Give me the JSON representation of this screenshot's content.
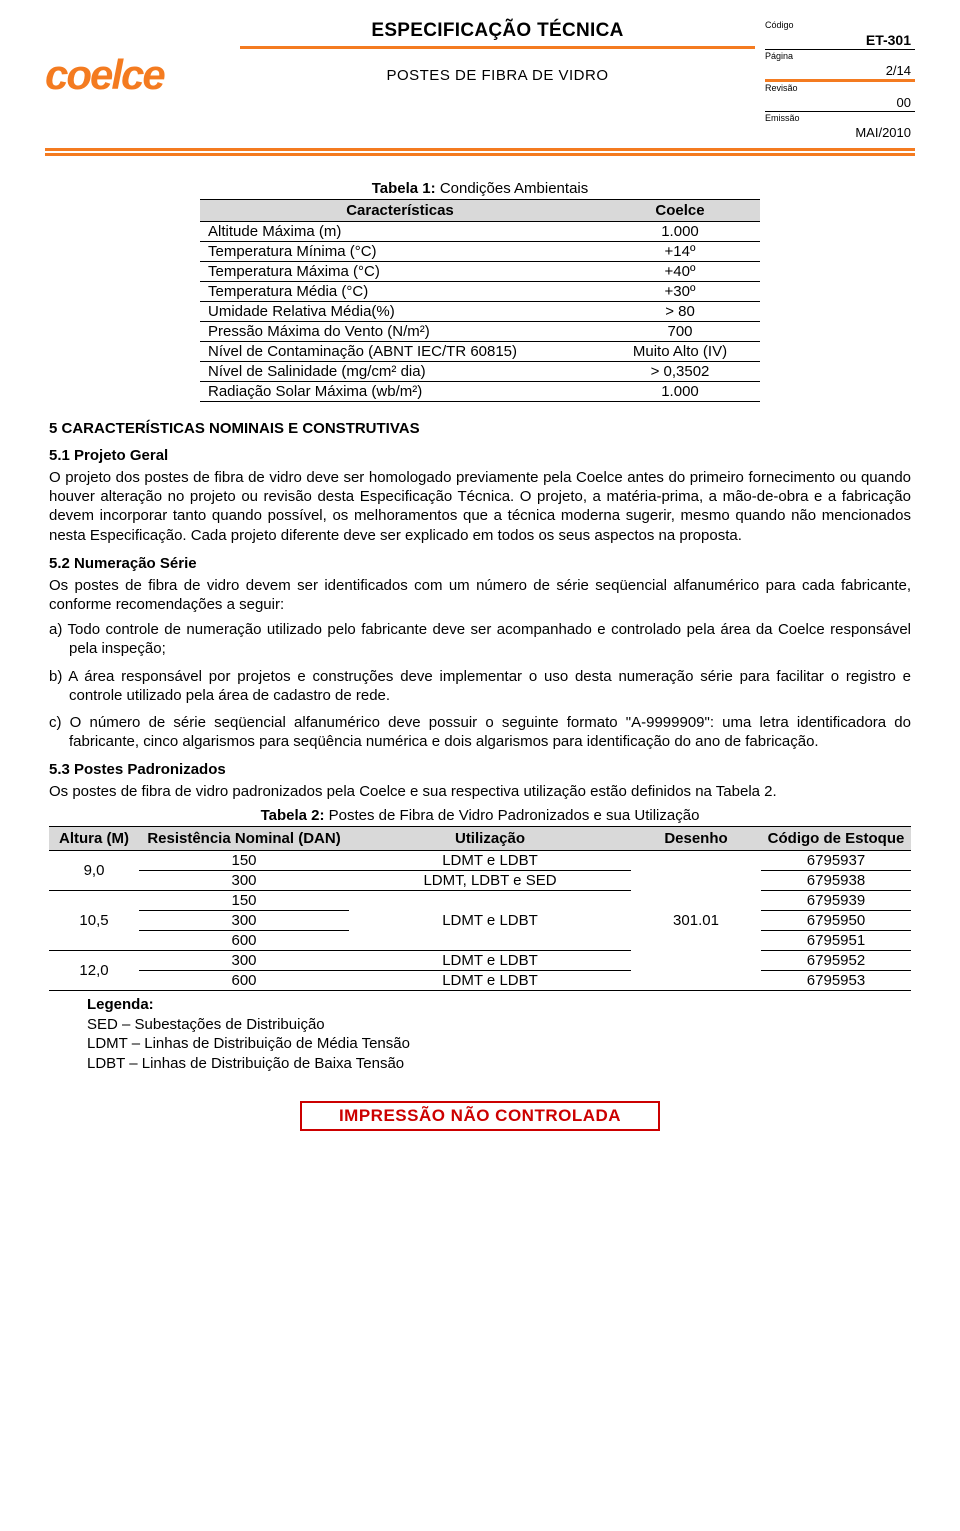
{
  "header": {
    "logo_text": "coelce",
    "title": "ESPECIFICAÇÃO TÉCNICA",
    "subtitle": "POSTES DE FIBRA DE VIDRO",
    "meta": {
      "codigo_label": "Código",
      "codigo": "ET-301",
      "pagina_label": "Página",
      "pagina": "2/14",
      "revisao_label": "Revisão",
      "revisao": "00",
      "emissao_label": "Emissão",
      "emissao": "MAI/2010"
    }
  },
  "table1": {
    "title_bold": "Tabela 1:",
    "title_rest": " Condições Ambientais",
    "headers": [
      "Características",
      "Coelce"
    ],
    "rows": [
      [
        "Altitude Máxima (m)",
        "1.000"
      ],
      [
        "Temperatura Mínima (°C)",
        "+14º"
      ],
      [
        "Temperatura Máxima (°C)",
        "+40º"
      ],
      [
        "Temperatura Média (°C)",
        "+30º"
      ],
      [
        "Umidade Relativa Média(%)",
        "> 80"
      ],
      [
        "Pressão Máxima do Vento (N/m²)",
        "700"
      ],
      [
        "Nível de Contaminação (ABNT IEC/TR 60815)",
        "Muito Alto (IV)"
      ],
      [
        "Nível de Salinidade (mg/cm² dia)",
        "> 0,3502"
      ],
      [
        "Radiação Solar Máxima (wb/m²)",
        "1.000"
      ]
    ]
  },
  "sec5": {
    "heading": "5   CARACTERÍSTICAS NOMINAIS E CONSTRUTIVAS",
    "s51_title": "5.1 Projeto Geral",
    "s51_body": "O projeto dos postes de fibra de vidro deve ser homologado previamente pela Coelce antes do primeiro fornecimento ou quando houver alteração no projeto ou revisão desta Especificação Técnica. O projeto, a matéria-prima, a mão-de-obra e a fabricação devem incorporar tanto quando possível, os melhoramentos que a técnica moderna sugerir, mesmo quando não mencionados nesta Especificação. Cada projeto diferente deve ser explicado em todos os seus aspectos na proposta.",
    "s52_title": "5.2 Numeração Série",
    "s52_intro": "Os postes de fibra de vidro devem ser identificados com um número de série seqüencial alfanumérico para cada fabricante, conforme recomendações a seguir:",
    "s52_a": "a) Todo controle de numeração utilizado pelo fabricante deve ser acompanhado e controlado pela área da Coelce responsável pela inspeção;",
    "s52_b": "b) A área responsável por projetos e construções deve implementar o uso desta numeração série para facilitar o registro e controle utilizado pela área de cadastro de rede.",
    "s52_c": "c) O número de série seqüencial alfanumérico deve possuir o seguinte formato \"A-9999909\": uma letra identificadora do fabricante, cinco algarismos para seqüência numérica e dois algarismos para identificação do ano de fabricação.",
    "s53_title": "5.3 Postes Padronizados",
    "s53_intro": "Os postes de fibra de vidro padronizados pela Coelce e sua respectiva utilização estão definidos na Tabela 2."
  },
  "table2": {
    "title_bold": "Tabela 2:",
    "title_rest": " Postes de Fibra de Vidro Padronizados e sua Utilização",
    "headers": [
      "Altura (M)",
      "Resistência Nominal (DAN)",
      "Utilização",
      "Desenho",
      "Código de Estoque"
    ],
    "desenho": "301.01",
    "rows": [
      {
        "altura": "9,0",
        "res": "150",
        "util": "LDMT e LDBT",
        "cod": "6795937"
      },
      {
        "altura": "",
        "res": "300",
        "util": "LDMT, LDBT e SED",
        "cod": "6795938"
      },
      {
        "altura": "10,5",
        "res": "150",
        "util": "LDMT e LDBT",
        "cod": "6795939"
      },
      {
        "altura": "",
        "res": "300",
        "util": "",
        "cod": "6795950"
      },
      {
        "altura": "",
        "res": "600",
        "util": "",
        "cod": "6795951"
      },
      {
        "altura": "12,0",
        "res": "300",
        "util": "LDMT e LDBT",
        "cod": "6795952"
      },
      {
        "altura": "",
        "res": "600",
        "util": "LDMT e LDBT",
        "cod": "6795953"
      }
    ]
  },
  "legenda": {
    "title": "Legenda:",
    "lines": [
      "SED – Subestações de Distribuição",
      "LDMT – Linhas de Distribuição de Média Tensão",
      "LDBT – Linhas de Distribuição de Baixa Tensão"
    ]
  },
  "footer_stamp": "IMPRESSÃO NÃO CONTROLADA"
}
